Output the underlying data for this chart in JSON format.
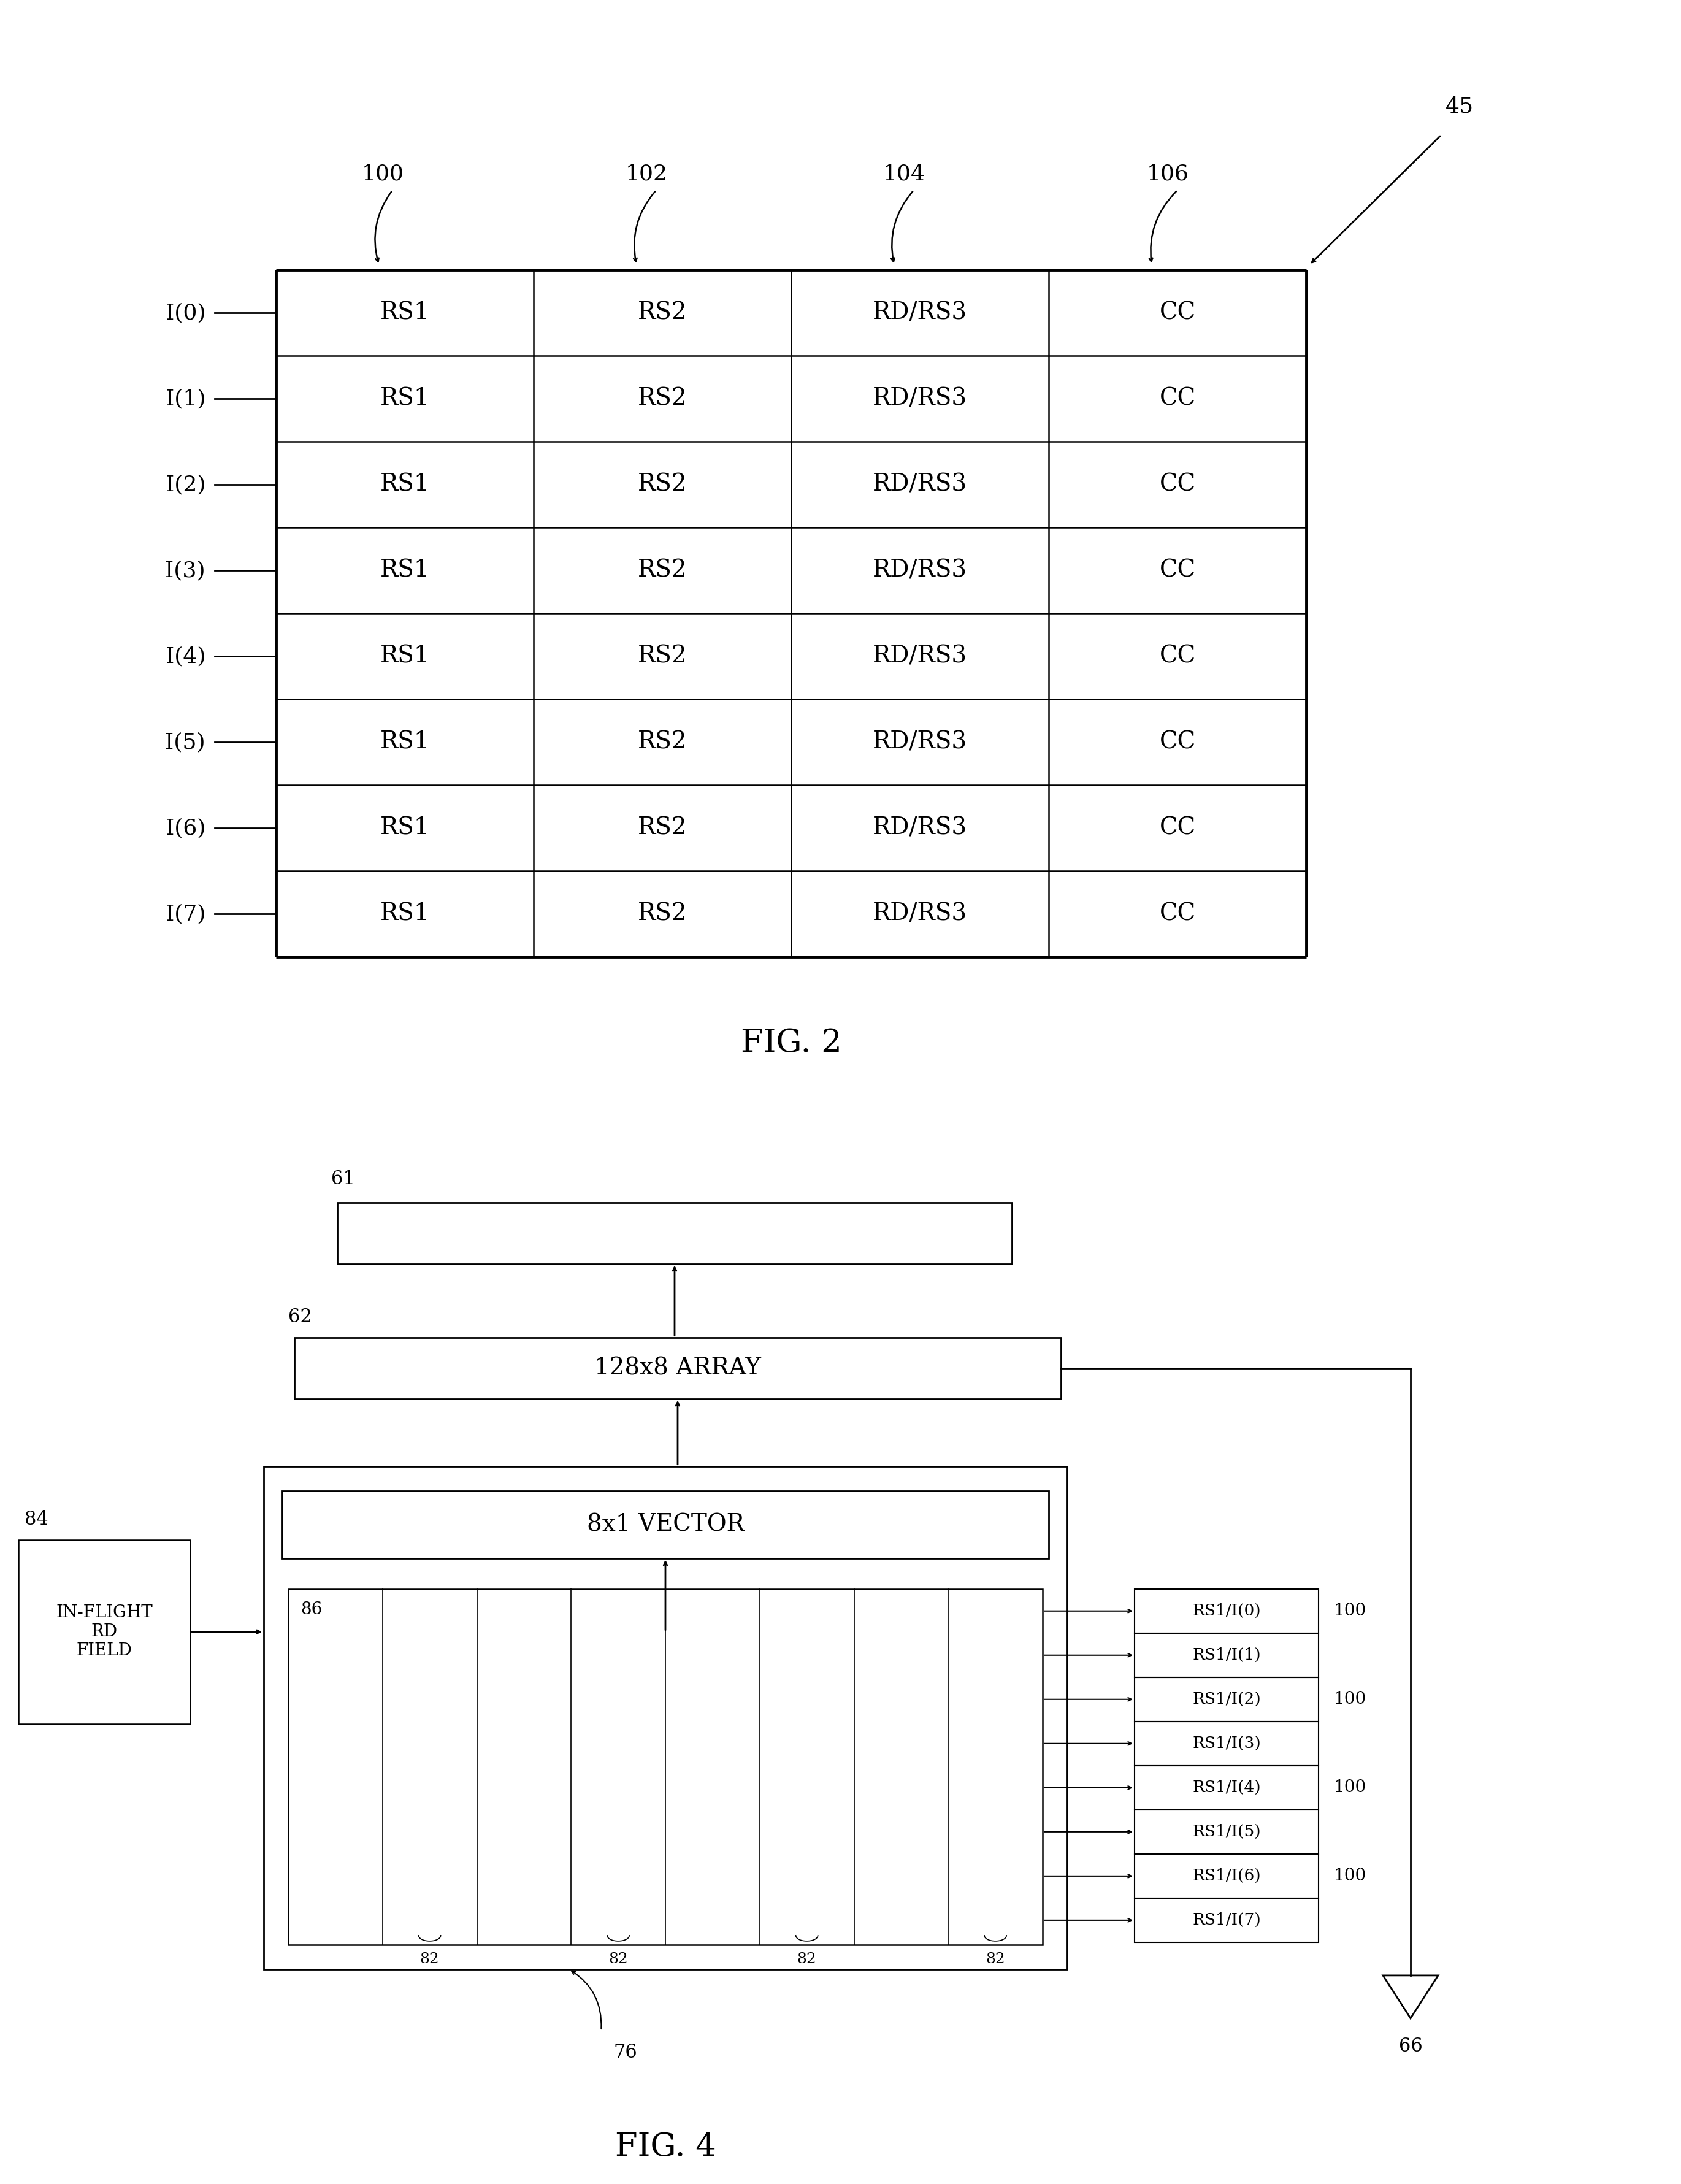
{
  "fig2": {
    "rows": [
      "I(0)",
      "I(1)",
      "I(2)",
      "I(3)",
      "I(4)",
      "I(5)",
      "I(6)",
      "I(7)"
    ],
    "cols": [
      "RS1",
      "RS2",
      "RD/RS3",
      "CC"
    ],
    "col_labels": [
      "100",
      "102",
      "104",
      "106"
    ],
    "table_label": "45",
    "fig_label": "FIG. 2"
  },
  "fig4": {
    "fig_label": "FIG. 4",
    "box62_label": "128x8 ARRAY",
    "vector_label": "8x1 VECTOR",
    "inflight_label": "IN-FLIGHT\nRD\nFIELD",
    "rs_labels": [
      "RS1/I(0)",
      "RS1/I(1)",
      "RS1/I(2)",
      "RS1/I(3)",
      "RS1/I(4)",
      "RS1/I(5)",
      "RS1/I(6)",
      "RS1/I(7)"
    ],
    "rs_nums": [
      "100",
      "",
      "100",
      "",
      "100",
      "",
      "100",
      ""
    ]
  },
  "bg_color": "#ffffff",
  "line_color": "#000000",
  "text_color": "#000000"
}
